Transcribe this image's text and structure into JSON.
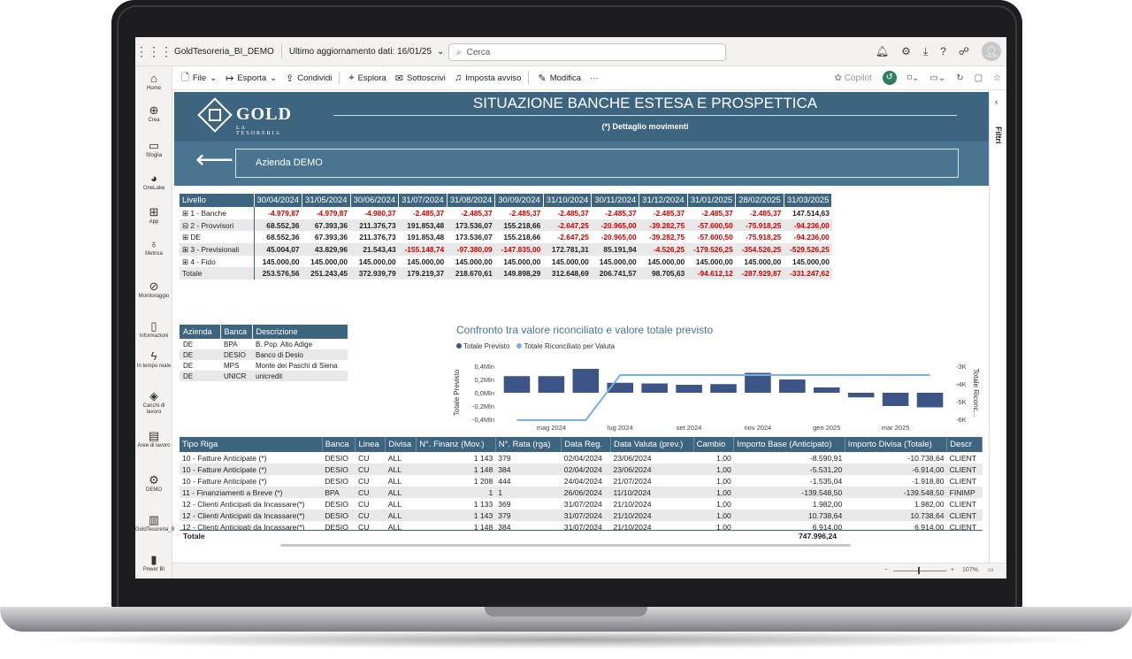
{
  "app": {
    "report_name": "GoldTesoreria_BI_DEMO",
    "last_update": "Ultimo aggiornamento dati: 16/01/25",
    "search_placeholder": "Cerca"
  },
  "rail": [
    {
      "label": "Home",
      "icon": "home-icon",
      "glyph": "⌂"
    },
    {
      "label": "Crea",
      "icon": "plus-circle-icon",
      "glyph": "⊕"
    },
    {
      "label": "Sfoglia",
      "icon": "folder-icon",
      "glyph": "▭"
    },
    {
      "label": "OneLake",
      "icon": "onelake-icon",
      "glyph": "◕"
    },
    {
      "label": "App",
      "icon": "apps-icon",
      "glyph": "⊞"
    },
    {
      "label": "Metrica",
      "icon": "trophy-icon",
      "glyph": "♁"
    },
    {
      "label": "Monitoraggio",
      "icon": "monitor-icon",
      "glyph": "⊘"
    },
    {
      "label": "Informazioni",
      "icon": "book-icon",
      "glyph": "▯"
    },
    {
      "label": "In tempo reale",
      "icon": "lightning-icon",
      "glyph": "ϟ"
    },
    {
      "label": "Carichi di lavoro",
      "icon": "workload-icon",
      "glyph": "◈"
    },
    {
      "label": "Aree di lavoro",
      "icon": "workspace-icon",
      "glyph": "▤"
    },
    {
      "label": "DEMO",
      "icon": "demo-icon",
      "glyph": "⚙"
    },
    {
      "label": "GoldTesoreria_BI_DEMO",
      "icon": "report-icon",
      "glyph": "▥"
    },
    {
      "label": "Power BI",
      "icon": "powerbi-icon",
      "glyph": "▮"
    }
  ],
  "commands": {
    "file": "File",
    "export": "Esporta",
    "share": "Condividi",
    "explore": "Esplora",
    "subscribe": "Sottoscrivi",
    "alert": "Imposta avviso",
    "edit": "Modifica",
    "more": "···",
    "copilot": "Copilot"
  },
  "report": {
    "logo_text": "GOLD",
    "logo_sub": "LA TESORERIA",
    "title": "SITUAZIONE BANCHE ESTESA E PROSPETTICA",
    "subtitle": "(*) Dettaglio movimenti",
    "company": "Azienda DEMO",
    "back_arrow": "⟵"
  },
  "matrix": {
    "header_label": "Livello",
    "dates": [
      "30/04/2024",
      "31/05/2024",
      "30/06/2024",
      "31/07/2024",
      "31/08/2024",
      "30/09/2024",
      "31/10/2024",
      "30/11/2024",
      "31/12/2024",
      "31/01/2025",
      "28/02/2025",
      "31/03/2025"
    ],
    "rows": [
      {
        "label": "⊞  1 - Banche",
        "values": [
          "-4.979,87",
          "-4.979,87",
          "-4.980,37",
          "-2.485,37",
          "-2.485,37",
          "-2.485,37",
          "-2.485,37",
          "-2.485,37",
          "-2.485,37",
          "-2.485,37",
          "-2.485,37",
          "147.514,63"
        ]
      },
      {
        "label": "⊟  2 - Provvisori",
        "values": [
          "68.552,36",
          "67.393,36",
          "211.376,73",
          "191.853,48",
          "173.536,07",
          "155.218,66",
          "-2.647,25",
          "-20.965,00",
          "-39.282,75",
          "-57.600,50",
          "-75.918,25",
          "-94.236,00"
        ]
      },
      {
        "label": "    ⊞  DE",
        "values": [
          "68.552,36",
          "67.393,36",
          "211.376,73",
          "191.853,48",
          "173.536,07",
          "155.218,66",
          "-2.647,25",
          "-20.965,00",
          "-39.282,75",
          "-57.600,50",
          "-75.918,25",
          "-94.236,00"
        ]
      },
      {
        "label": "⊞  3 - Previsionali",
        "values": [
          "45.004,07",
          "43.829,96",
          "21.543,43",
          "-155.148,74",
          "-97.380,09",
          "-147.835,00",
          "172.781,31",
          "85.191,94",
          "-4.526,25",
          "-179.526,25",
          "-354.526,25",
          "-529.526,25"
        ]
      },
      {
        "label": "⊞  4 - Fido",
        "values": [
          "145.000,00",
          "145.000,00",
          "145.000,00",
          "145.000,00",
          "145.000,00",
          "145.000,00",
          "145.000,00",
          "145.000,00",
          "145.000,00",
          "145.000,00",
          "145.000,00",
          "145.000,00"
        ]
      },
      {
        "label": "    Totale",
        "values": [
          "253.576,56",
          "251.243,45",
          "372.939,79",
          "179.219,37",
          "218.670,61",
          "149.898,29",
          "312.648,69",
          "206.741,57",
          "98.705,63",
          "-94.612,12",
          "-287.929,87",
          "-331.247,62"
        ]
      }
    ]
  },
  "azienda_table": {
    "headers": [
      "Azienda",
      "Banca",
      "Descrizione"
    ],
    "rows": [
      [
        "DE",
        "BPA",
        "B. Pop. Alto Adige"
      ],
      [
        "DE",
        "DESIO",
        "Banco di Desio"
      ],
      [
        "DE",
        "MPS",
        "Monte dei Paschi di Siena"
      ],
      [
        "DE",
        "UNICR",
        "unicredit"
      ]
    ]
  },
  "chart_data": {
    "type": "bar",
    "title": "Confronto tra valore riconciliato e valore totale previsto",
    "categories": [
      "apr 2024",
      "mag 2024",
      "giu 2024",
      "lug 2024",
      "ago 2024",
      "set 2024",
      "ott 2024",
      "nov 2024",
      "dic 2024",
      "gen 2025",
      "feb 2025",
      "mar 2025",
      "apr 2025"
    ],
    "tick_labels": [
      "mag 2024",
      "lug 2024",
      "set 2024",
      "nov 2024",
      "gen 2025",
      "mar 2025"
    ],
    "series": [
      {
        "name": "Totale Previsto",
        "axis": "left",
        "type": "bar",
        "color": "#3d5487",
        "values": [
          0.25,
          0.25,
          0.36,
          0.15,
          0.14,
          0.12,
          0.13,
          0.3,
          0.2,
          0.08,
          -0.07,
          -0.2,
          -0.22
        ]
      },
      {
        "name": "Totale Riconciliato per Valuta",
        "axis": "right",
        "type": "line",
        "color": "#7aaee6",
        "values": [
          -6.05,
          -6.05,
          -6.05,
          -3.5,
          -3.5,
          -3.5,
          -3.5,
          -3.5,
          -3.5,
          -3.5,
          -3.5,
          -3.5,
          -3.5
        ]
      }
    ],
    "ylabel": "Totale Previsto",
    "y2label": "Totale Riconc...",
    "ylim": [
      -0.4,
      0.4
    ],
    "y2lim": [
      -6,
      -3
    ],
    "yticks": [
      "0,4Mln",
      "0,2Mln",
      "0,0Mln",
      "-0,2Mln",
      "-0,4Mln"
    ],
    "y2ticks": [
      "-3K",
      "-4K",
      "-5K",
      "-6K"
    ],
    "legend": "top-left",
    "grid": false
  },
  "bottom_table": {
    "headers": [
      "Tipo Riga",
      "Banca",
      "Linea",
      "Divisa",
      "N°. Finanz (Mov.)",
      "N°. Rata (rga)",
      "Data Reg.",
      "Data Valuta (prev.)",
      "Cambio",
      "Importo Base (Anticipato)",
      "Importo Divisa (Totale)",
      "Descr"
    ],
    "rows": [
      [
        "10 - Fatture Anticipate (*)",
        "DESIO",
        "CU",
        "ALL",
        "1 143",
        "379",
        "02/04/2024",
        "23/06/2024",
        "1,00",
        "-8.590,91",
        "-10.738,64",
        "CLIENT"
      ],
      [
        "10 - Fatture Anticipate (*)",
        "DESIO",
        "CU",
        "ALL",
        "1 148",
        "384",
        "02/04/2024",
        "23/06/2024",
        "1,00",
        "-5.531,20",
        "-6.914,00",
        "CLIENT"
      ],
      [
        "10 - Fatture Anticipate (*)",
        "DESIO",
        "CU",
        "ALL",
        "1 208",
        "444",
        "24/04/2024",
        "21/07/2024",
        "1,00",
        "-1.535,04",
        "-1.918,80",
        "CLIENT"
      ],
      [
        "11 - Finanziamenti a Breve (*)",
        "BPA",
        "CU",
        "ALL",
        "1",
        "1",
        "26/06/2024",
        "11/10/2024",
        "1,00",
        "-139.548,50",
        "-139.548,50",
        "FINIMP"
      ],
      [
        "12 - Clienti Anticipati da Incassare(*)",
        "DESIO",
        "CU",
        "ALL",
        "1 133",
        "369",
        "31/07/2024",
        "21/10/2024",
        "1,00",
        "1.982,00",
        "1.982,00",
        "CLIENT"
      ],
      [
        "12 - Clienti Anticipati da Incassare(*)",
        "DESIO",
        "CU",
        "ALL",
        "1 143",
        "379",
        "31/07/2024",
        "21/10/2024",
        "1,00",
        "10.738,64",
        "10.738,64",
        "CLIENT"
      ],
      [
        "12 - Clienti Anticipati da Incassare(*)",
        "DESIO",
        "CU",
        "ALL",
        "1 148",
        "384",
        "31/07/2024",
        "21/10/2024",
        "1,00",
        "6.914,00",
        "6.914,00",
        "CLIENT"
      ]
    ],
    "total_label": "Totale",
    "total_value": "747.996,24"
  },
  "status": {
    "zoom": "107%"
  },
  "filters_label": "Filtri",
  "colors": {
    "header": "#3e6580",
    "band": "#4a7590",
    "negative": "#d00000"
  }
}
